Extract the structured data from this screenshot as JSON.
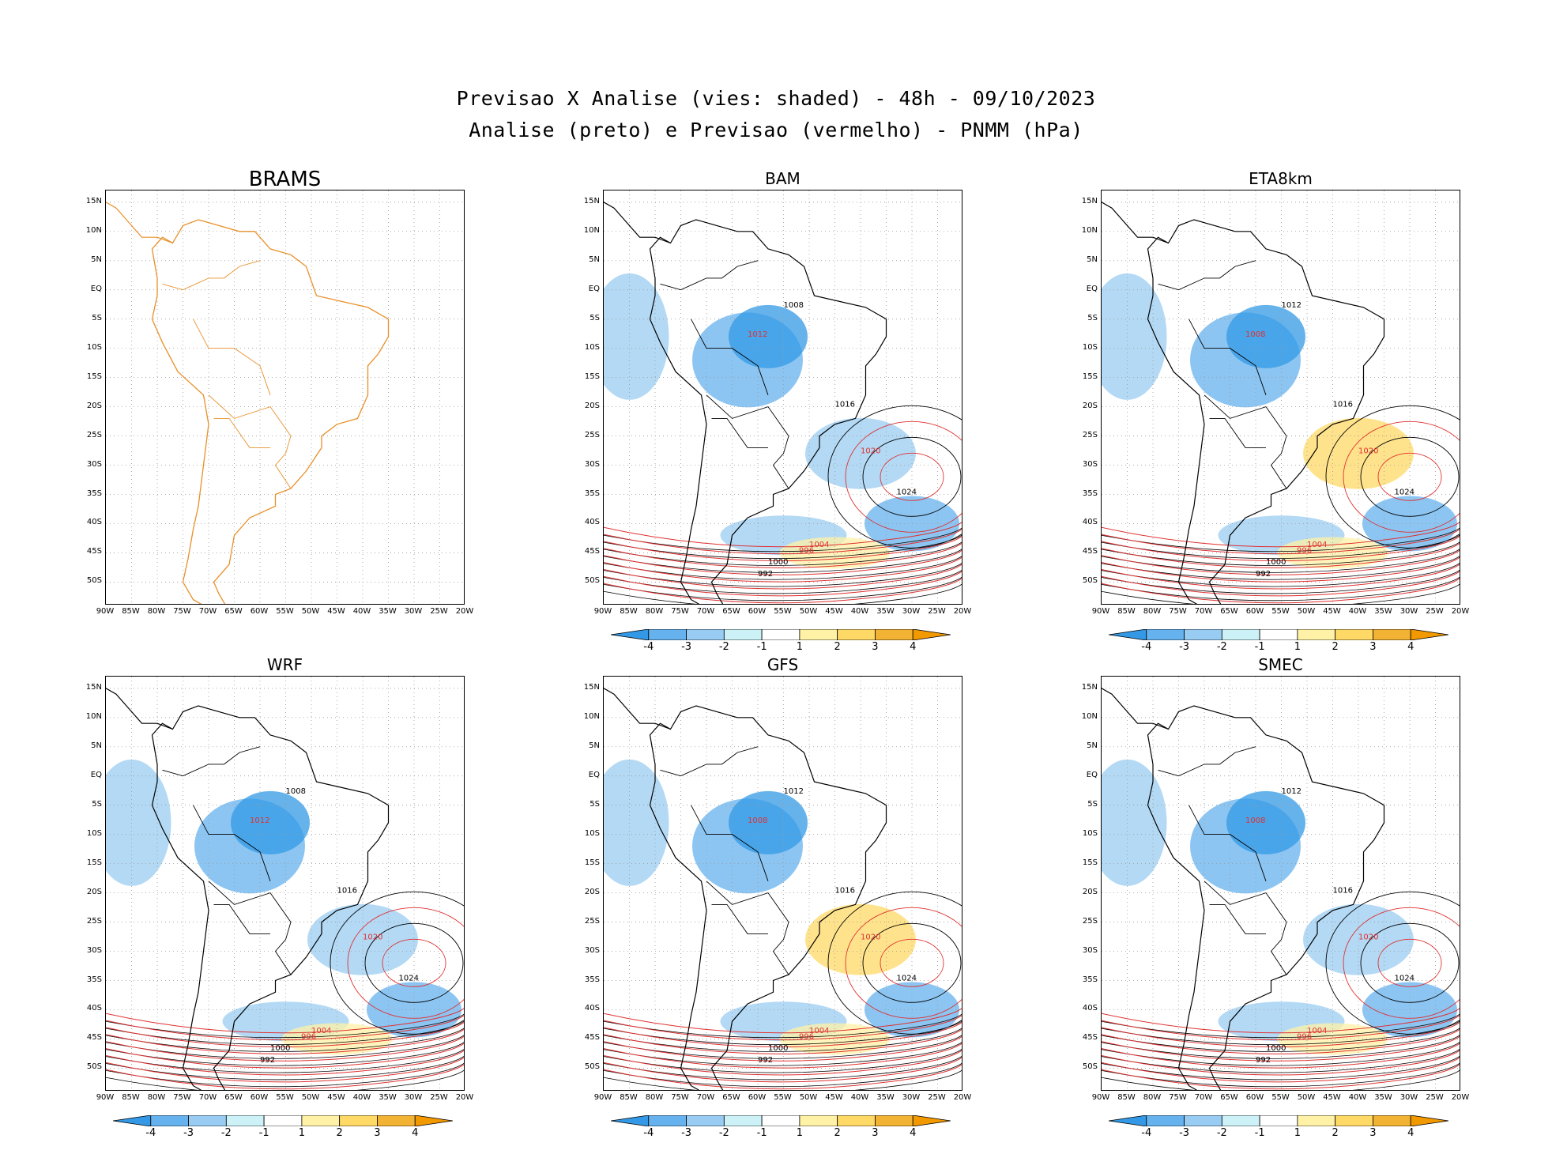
{
  "header": {
    "line1": "Previsao X Analise (vies: shaded) - 48h - 09/10/2023",
    "line2": "Analise (preto) e Previsao (vermelho) - PNMM (hPa)"
  },
  "axes": {
    "lat_labels": [
      "15N",
      "10N",
      "5N",
      "EQ",
      "5S",
      "10S",
      "15S",
      "20S",
      "25S",
      "30S",
      "35S",
      "40S",
      "45S",
      "50S"
    ],
    "lon_labels": [
      "90W",
      "85W",
      "80W",
      "75W",
      "70W",
      "65W",
      "60W",
      "55W",
      "50W",
      "45W",
      "40W",
      "35W",
      "30W",
      "25W",
      "20W"
    ]
  },
  "colorbar": {
    "labels": [
      "-4",
      "-3",
      "-2",
      "-1",
      "1",
      "2",
      "3",
      "4"
    ],
    "colors": [
      "#3399e6",
      "#66b2ee",
      "#99ccf2",
      "#ccf2f7",
      "#ffffff",
      "#fff2a6",
      "#ffd966",
      "#f2b233",
      "#f29900"
    ]
  },
  "panels": [
    {
      "name": "BRAMS",
      "has_data": false
    },
    {
      "name": "BAM",
      "has_data": true,
      "isobars": [
        "1008",
        "1012",
        "1016",
        "1020",
        "1024",
        "1004",
        "1000",
        "996",
        "992"
      ]
    },
    {
      "name": "ETA8km",
      "has_data": true,
      "isobars": [
        "1012",
        "1008",
        "1016",
        "1020",
        "1024",
        "1004",
        "1000",
        "996",
        "992"
      ]
    },
    {
      "name": "WRF",
      "has_data": true,
      "isobars": [
        "1008",
        "1012",
        "1016",
        "1020",
        "1024",
        "1004",
        "1000",
        "996",
        "992"
      ]
    },
    {
      "name": "GFS",
      "has_data": true,
      "isobars": [
        "1012",
        "1008",
        "1016",
        "1020",
        "1024",
        "1004",
        "1000",
        "996",
        "992"
      ]
    },
    {
      "name": "SMEC",
      "has_data": true,
      "isobars": [
        "1012",
        "1008",
        "1016",
        "1020",
        "1024",
        "1004",
        "1000",
        "996",
        "992"
      ]
    }
  ],
  "colors": {
    "analysis_contour": "#000000",
    "forecast_contour": "#e03030",
    "coastline_brams": "#e8902a",
    "grid": "#999999"
  }
}
